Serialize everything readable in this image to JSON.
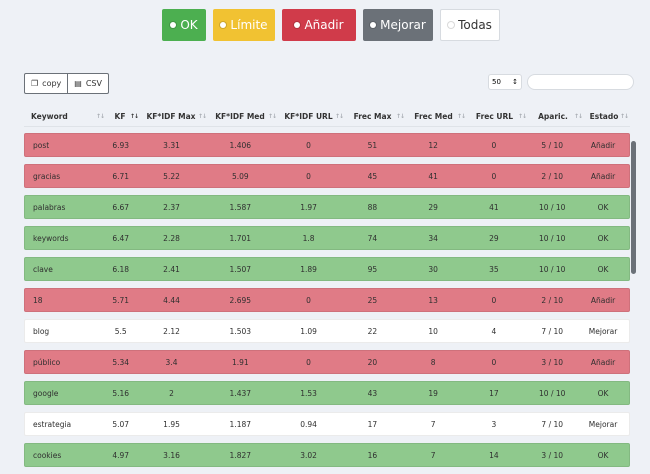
{
  "filters": [
    {
      "label": "OK"
    },
    {
      "label": "Límite"
    },
    {
      "label": "Añadir"
    },
    {
      "label": "Mejorar"
    },
    {
      "label": "Todas"
    }
  ],
  "export": {
    "copy_label": "copy",
    "csv_label": "CSV"
  },
  "page_size": "50",
  "columns": [
    "Keyword",
    "KF",
    "KF*IDF Max",
    "KF*IDF Med",
    "KF*IDF URL",
    "Frec Max",
    "Frec Med",
    "Frec URL",
    "Aparic.",
    "Estado"
  ],
  "rows": [
    {
      "status": "add",
      "cells": [
        "post",
        "6.93",
        "3.31",
        "1.406",
        "0",
        "51",
        "12",
        "0",
        "5 / 10",
        "Añadir"
      ]
    },
    {
      "status": "add",
      "cells": [
        "gracias",
        "6.71",
        "5.22",
        "5.09",
        "0",
        "45",
        "41",
        "0",
        "2 / 10",
        "Añadir"
      ]
    },
    {
      "status": "ok",
      "cells": [
        "palabras",
        "6.67",
        "2.37",
        "1.587",
        "1.97",
        "88",
        "29",
        "41",
        "10 / 10",
        "OK"
      ]
    },
    {
      "status": "ok",
      "cells": [
        "keywords",
        "6.47",
        "2.28",
        "1.701",
        "1.8",
        "74",
        "34",
        "29",
        "10 / 10",
        "OK"
      ]
    },
    {
      "status": "ok",
      "cells": [
        "clave",
        "6.18",
        "2.41",
        "1.507",
        "1.89",
        "95",
        "30",
        "35",
        "10 / 10",
        "OK"
      ]
    },
    {
      "status": "add",
      "cells": [
        "18",
        "5.71",
        "4.44",
        "2.695",
        "0",
        "25",
        "13",
        "0",
        "2 / 10",
        "Añadir"
      ]
    },
    {
      "status": "mej",
      "cells": [
        "blog",
        "5.5",
        "2.12",
        "1.503",
        "1.09",
        "22",
        "10",
        "4",
        "7 / 10",
        "Mejorar"
      ]
    },
    {
      "status": "add",
      "cells": [
        "público",
        "5.34",
        "3.4",
        "1.91",
        "0",
        "20",
        "8",
        "0",
        "3 / 10",
        "Añadir"
      ]
    },
    {
      "status": "ok",
      "cells": [
        "google",
        "5.16",
        "2",
        "1.437",
        "1.53",
        "43",
        "19",
        "17",
        "10 / 10",
        "OK"
      ]
    },
    {
      "status": "mej",
      "cells": [
        "estrategia",
        "5.07",
        "1.95",
        "1.187",
        "0.94",
        "17",
        "7",
        "3",
        "7 / 10",
        "Mejorar"
      ]
    },
    {
      "status": "ok",
      "cells": [
        "cookies",
        "4.97",
        "3.16",
        "1.827",
        "3.02",
        "16",
        "7",
        "14",
        "3 / 10",
        "OK"
      ]
    }
  ],
  "colors": {
    "ok": "#4caf50",
    "limite": "#f1c232",
    "add": "#d03b4a",
    "mejorar": "#6b7178",
    "row_add": "#e07b86",
    "row_ok": "#8fc98d"
  }
}
